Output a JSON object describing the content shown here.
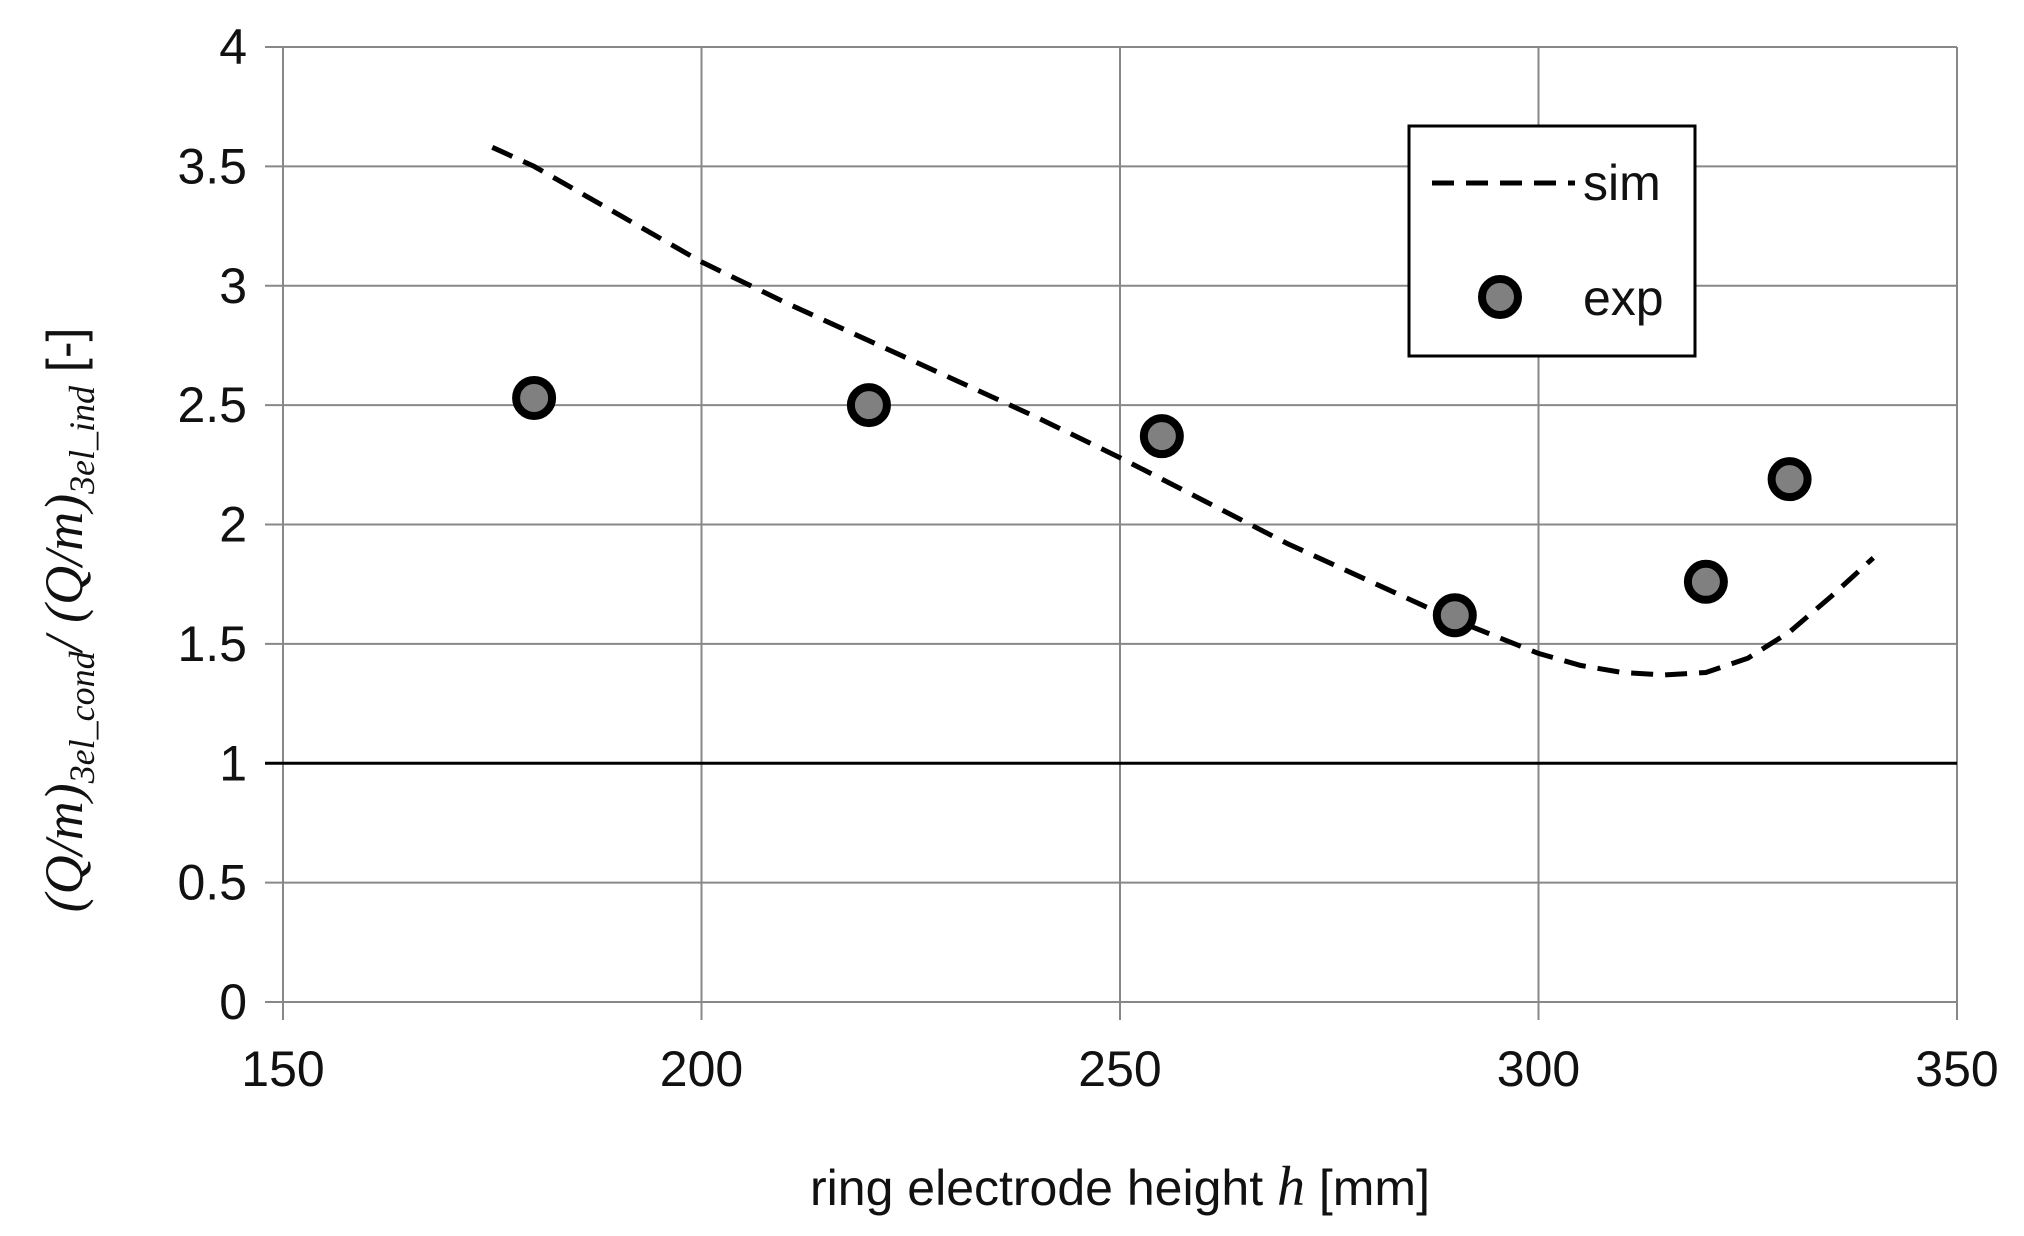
{
  "chart_data": {
    "type": "scatter",
    "title": "",
    "xlabel": {
      "prefix": "ring electrode height ",
      "variable": "h",
      "unit": " [mm]"
    },
    "ylabel": {
      "numerator": "(Q/m)",
      "numerator_sub": "3el_cond",
      "slash": "/ ",
      "denominator": "(Q/m)",
      "denominator_sub": "3el_ind",
      "unit": " [-]"
    },
    "xlim": [
      150,
      350
    ],
    "ylim": [
      0,
      4
    ],
    "x_ticks": [
      150,
      200,
      250,
      300,
      350
    ],
    "y_ticks": [
      0,
      0.5,
      1,
      1.5,
      2,
      2.5,
      3,
      3.5,
      4
    ],
    "x_tick_labels": [
      "150",
      "200",
      "250",
      "300",
      "350"
    ],
    "y_tick_labels": [
      "0",
      "0.5",
      "1",
      "1.5",
      "2",
      "2.5",
      "3",
      "3.5",
      "4"
    ],
    "grid": true,
    "reference_line": {
      "y": 1,
      "color": "#000000"
    },
    "legend": {
      "position": "top-right",
      "entries": [
        "sim",
        "exp"
      ]
    },
    "series": [
      {
        "name": "sim",
        "kind": "line",
        "style": "dashed",
        "color": "#000000",
        "x": [
          175,
          180,
          190,
          200,
          210,
          220,
          230,
          240,
          250,
          260,
          270,
          280,
          290,
          300,
          305,
          310,
          315,
          320,
          325,
          330,
          335,
          340
        ],
        "y": [
          3.58,
          3.5,
          3.3,
          3.1,
          2.93,
          2.77,
          2.61,
          2.45,
          2.28,
          2.1,
          1.92,
          1.76,
          1.6,
          1.46,
          1.41,
          1.38,
          1.37,
          1.38,
          1.44,
          1.55,
          1.7,
          1.86
        ]
      },
      {
        "name": "exp",
        "kind": "scatter",
        "fill": "#808080",
        "stroke": "#000000",
        "x": [
          180,
          220,
          255,
          290,
          320,
          330
        ],
        "y": [
          2.53,
          2.5,
          2.37,
          1.62,
          1.76,
          2.19
        ]
      }
    ]
  }
}
